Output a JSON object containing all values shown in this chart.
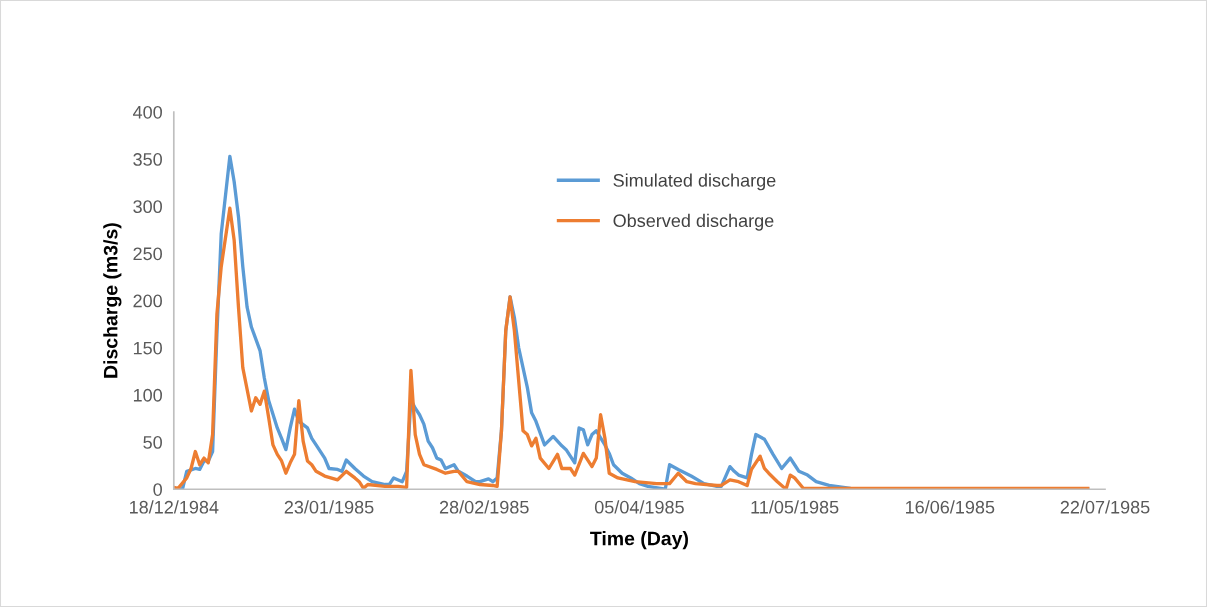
{
  "chart_data": {
    "type": "line",
    "xlabel": "Time (Day)",
    "ylabel": "Discharge (m3/s)",
    "xlim": [
      "1984-12-18",
      "1985-07-22"
    ],
    "xticks": [
      {
        "value": "1984-12-18",
        "label": "18/12/1984"
      },
      {
        "value": "1985-01-23",
        "label": "23/01/1985"
      },
      {
        "value": "1985-02-28",
        "label": "28/02/1985"
      },
      {
        "value": "1985-04-05",
        "label": "05/04/1985"
      },
      {
        "value": "1985-05-11",
        "label": "11/05/1985"
      },
      {
        "value": "1985-06-16",
        "label": "16/06/1985"
      },
      {
        "value": "1985-07-22",
        "label": "22/07/1985"
      }
    ],
    "ylim": [
      0,
      400
    ],
    "yticks": [
      0,
      50,
      100,
      150,
      200,
      250,
      300,
      350,
      400
    ],
    "grid": false,
    "legend": "top",
    "marker": "none",
    "line_style": "solid",
    "series": [
      {
        "name": "Simulated discharge",
        "color": "#5b9bd5",
        "x": [
          "1984-12-18",
          "1984-12-20",
          "1984-12-21",
          "1984-12-23",
          "1984-12-24",
          "1984-12-25",
          "1984-12-26",
          "1984-12-27",
          "1984-12-28",
          "1984-12-29",
          "1984-12-31",
          "1985-01-01",
          "1985-01-02",
          "1985-01-03",
          "1985-01-04",
          "1985-01-05",
          "1985-01-07",
          "1985-01-08",
          "1985-01-09",
          "1985-01-11",
          "1985-01-12",
          "1985-01-13",
          "1985-01-14",
          "1985-01-15",
          "1985-01-16",
          "1985-01-18",
          "1985-01-19",
          "1985-01-20",
          "1985-01-22",
          "1985-01-23",
          "1985-01-25",
          "1985-01-26",
          "1985-01-27",
          "1985-01-29",
          "1985-01-31",
          "1985-02-02",
          "1985-02-05",
          "1985-02-06",
          "1985-02-07",
          "1985-02-09",
          "1985-02-10",
          "1985-02-11",
          "1985-02-12",
          "1985-02-13",
          "1985-02-14",
          "1985-02-15",
          "1985-02-16",
          "1985-02-17",
          "1985-02-18",
          "1985-02-19",
          "1985-02-21",
          "1985-02-22",
          "1985-02-24",
          "1985-02-26",
          "1985-02-27",
          "1985-03-01",
          "1985-03-02",
          "1985-03-03",
          "1985-03-04",
          "1985-03-05",
          "1985-03-06",
          "1985-03-07",
          "1985-03-08",
          "1985-03-10",
          "1985-03-11",
          "1985-03-12",
          "1985-03-14",
          "1985-03-16",
          "1985-03-18",
          "1985-03-19",
          "1985-03-21",
          "1985-03-22",
          "1985-03-23",
          "1985-03-24",
          "1985-03-25",
          "1985-03-26",
          "1985-03-28",
          "1985-03-29",
          "1985-03-30",
          "1985-04-01",
          "1985-04-03",
          "1985-04-05",
          "1985-04-07",
          "1985-04-11",
          "1985-04-12",
          "1985-04-14",
          "1985-04-17",
          "1985-04-20",
          "1985-04-23",
          "1985-04-24",
          "1985-04-26",
          "1985-04-27",
          "1985-04-28",
          "1985-04-30",
          "1985-05-01",
          "1985-05-02",
          "1985-05-04",
          "1985-05-06",
          "1985-05-08",
          "1985-05-10",
          "1985-05-11",
          "1985-05-12",
          "1985-05-14",
          "1985-05-16",
          "1985-05-19",
          "1985-05-24",
          "1985-06-01",
          "1985-07-18"
        ],
        "values": [
          0,
          0,
          19,
          22,
          21,
          30,
          30,
          40,
          165,
          271,
          353,
          326,
          289,
          236,
          193,
          172,
          147,
          118,
          94,
          65,
          54,
          42,
          65,
          85,
          72,
          65,
          54,
          47,
          33,
          22,
          21,
          19,
          31,
          22,
          14,
          8,
          5,
          5,
          12,
          8,
          19,
          95,
          86,
          79,
          69,
          51,
          44,
          33,
          31,
          22,
          26,
          19,
          14,
          8,
          8,
          11,
          8,
          12,
          62,
          168,
          204,
          182,
          150,
          108,
          81,
          72,
          47,
          56,
          46,
          42,
          28,
          65,
          63,
          47,
          58,
          62,
          47,
          38,
          26,
          17,
          12,
          6,
          3,
          0,
          26,
          21,
          14,
          6,
          3,
          3,
          24,
          19,
          15,
          12,
          37,
          58,
          53,
          37,
          22,
          33,
          26,
          19,
          15,
          8,
          4,
          1,
          0,
          0
        ]
      },
      {
        "name": "Observed discharge",
        "color": "#ed7d31",
        "x": [
          "1984-12-18",
          "1984-12-19",
          "1984-12-21",
          "1984-12-22",
          "1984-12-23",
          "1984-12-24",
          "1984-12-25",
          "1984-12-26",
          "1984-12-27",
          "1984-12-28",
          "1984-12-29",
          "1984-12-31",
          "1985-01-01",
          "1985-01-02",
          "1985-01-03",
          "1985-01-05",
          "1985-01-06",
          "1985-01-07",
          "1985-01-08",
          "1985-01-09",
          "1985-01-10",
          "1985-01-11",
          "1985-01-12",
          "1985-01-13",
          "1985-01-14",
          "1985-01-15",
          "1985-01-16",
          "1985-01-17",
          "1985-01-18",
          "1985-01-19",
          "1985-01-20",
          "1985-01-22",
          "1985-01-25",
          "1985-01-27",
          "1985-01-29",
          "1985-01-30",
          "1985-01-31",
          "1985-02-01",
          "1985-02-05",
          "1985-02-08",
          "1985-02-10",
          "1985-02-11",
          "1985-02-12",
          "1985-02-13",
          "1985-02-14",
          "1985-02-17",
          "1985-02-19",
          "1985-02-21",
          "1985-02-22",
          "1985-02-24",
          "1985-02-27",
          "1985-03-02",
          "1985-03-03",
          "1985-03-04",
          "1985-03-05",
          "1985-03-06",
          "1985-03-07",
          "1985-03-08",
          "1985-03-09",
          "1985-03-10",
          "1985-03-11",
          "1985-03-12",
          "1985-03-13",
          "1985-03-15",
          "1985-03-17",
          "1985-03-18",
          "1985-03-20",
          "1985-03-21",
          "1985-03-23",
          "1985-03-25",
          "1985-03-26",
          "1985-03-27",
          "1985-03-28",
          "1985-03-29",
          "1985-03-31",
          "1985-04-04",
          "1985-04-09",
          "1985-04-12",
          "1985-04-14",
          "1985-04-16",
          "1985-04-18",
          "1985-04-23",
          "1985-04-24",
          "1985-04-26",
          "1985-04-28",
          "1985-04-30",
          "1985-05-01",
          "1985-05-03",
          "1985-05-04",
          "1985-05-05",
          "1985-05-07",
          "1985-05-09",
          "1985-05-10",
          "1985-05-11",
          "1985-05-13",
          "1985-05-24",
          "1985-06-04",
          "1985-07-18"
        ],
        "values": [
          2,
          1,
          12,
          22,
          40,
          26,
          33,
          28,
          58,
          186,
          236,
          298,
          264,
          193,
          129,
          83,
          97,
          90,
          104,
          76,
          47,
          37,
          30,
          17,
          28,
          37,
          94,
          51,
          30,
          26,
          19,
          14,
          10,
          19,
          12,
          8,
          1,
          5,
          3,
          3,
          2,
          126,
          58,
          37,
          26,
          21,
          17,
          19,
          19,
          8,
          5,
          4,
          3,
          62,
          168,
          204,
          168,
          115,
          62,
          58,
          46,
          54,
          33,
          22,
          37,
          22,
          22,
          15,
          38,
          24,
          33,
          79,
          54,
          17,
          12,
          8,
          6,
          6,
          17,
          8,
          6,
          4,
          4,
          10,
          8,
          4,
          21,
          35,
          22,
          17,
          8,
          0,
          15,
          12,
          1,
          1,
          1,
          1
        ]
      }
    ]
  }
}
